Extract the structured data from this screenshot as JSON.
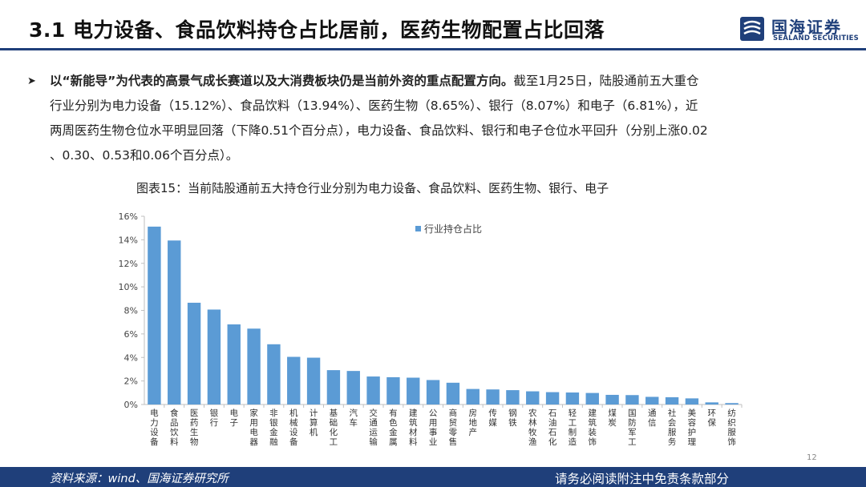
{
  "header": {
    "title": "3.1 电力设备、食品饮料持仓占比居前，医药生物配置占比回落",
    "logo_cn": "国海证券",
    "logo_en": "SEALAND SECURITIES"
  },
  "bullet": {
    "bold": "以“新能导”为代表的高景气成长赛道以及大消费板块仍是当前外资的重点配置方向。",
    "line1_rest": "截至1月25日，陆股通前五大重仓",
    "line2": "行业分别为电力设备（15.12%）、食品饮料（13.94%）、医药生物（8.65%）、银行（8.07%）和电子（6.81%），近",
    "line3": "两周医药生物仓位水平明显回落（下降0.51个百分点），电力设备、食品饮料、银行和电子仓位水平回升（分别上涨0.02",
    "line4": "、0.30、0.53和0.06个百分点）。"
  },
  "figure": {
    "caption": "图表15：当前陆股通前五大持仓行业分别为电力设备、食品饮料、医药生物、银行、电子"
  },
  "chart_data": {
    "type": "bar",
    "categories": [
      "电力设备",
      "食品饮料",
      "医药生物",
      "银行",
      "电子",
      "家用电器",
      "非银金融",
      "机械设备",
      "计算机",
      "基础化工",
      "汽车",
      "交通运输",
      "有色金属",
      "建筑材料",
      "公用事业",
      "商贸零售",
      "房地产",
      "传媒",
      "钢铁",
      "农林牧渔",
      "石油石化",
      "轻工制造",
      "建筑装饰",
      "煤炭",
      "国防军工",
      "通信",
      "社会服务",
      "美容护理",
      "环保",
      "纺织服饰"
    ],
    "series": [
      {
        "name": "行业持仓占比",
        "values": [
          15.12,
          13.94,
          8.65,
          8.07,
          6.81,
          6.45,
          5.12,
          4.05,
          3.98,
          2.92,
          2.85,
          2.38,
          2.32,
          2.28,
          2.08,
          1.85,
          1.32,
          1.28,
          1.22,
          1.12,
          1.05,
          1.02,
          0.98,
          0.82,
          0.8,
          0.65,
          0.62,
          0.52,
          0.18,
          0.12
        ]
      }
    ],
    "ylim": [
      0,
      16
    ],
    "yticks": [
      "0%",
      "2%",
      "4%",
      "6%",
      "8%",
      "10%",
      "12%",
      "14%",
      "16%"
    ],
    "grid": false,
    "legend_position": "top-center",
    "bar_color": "#5b9bd5"
  },
  "footer": {
    "source": "资料来源：wind、国海证券研究所",
    "disclaimer": "请务必阅读附注中免责条款部分",
    "page_number": "12"
  }
}
